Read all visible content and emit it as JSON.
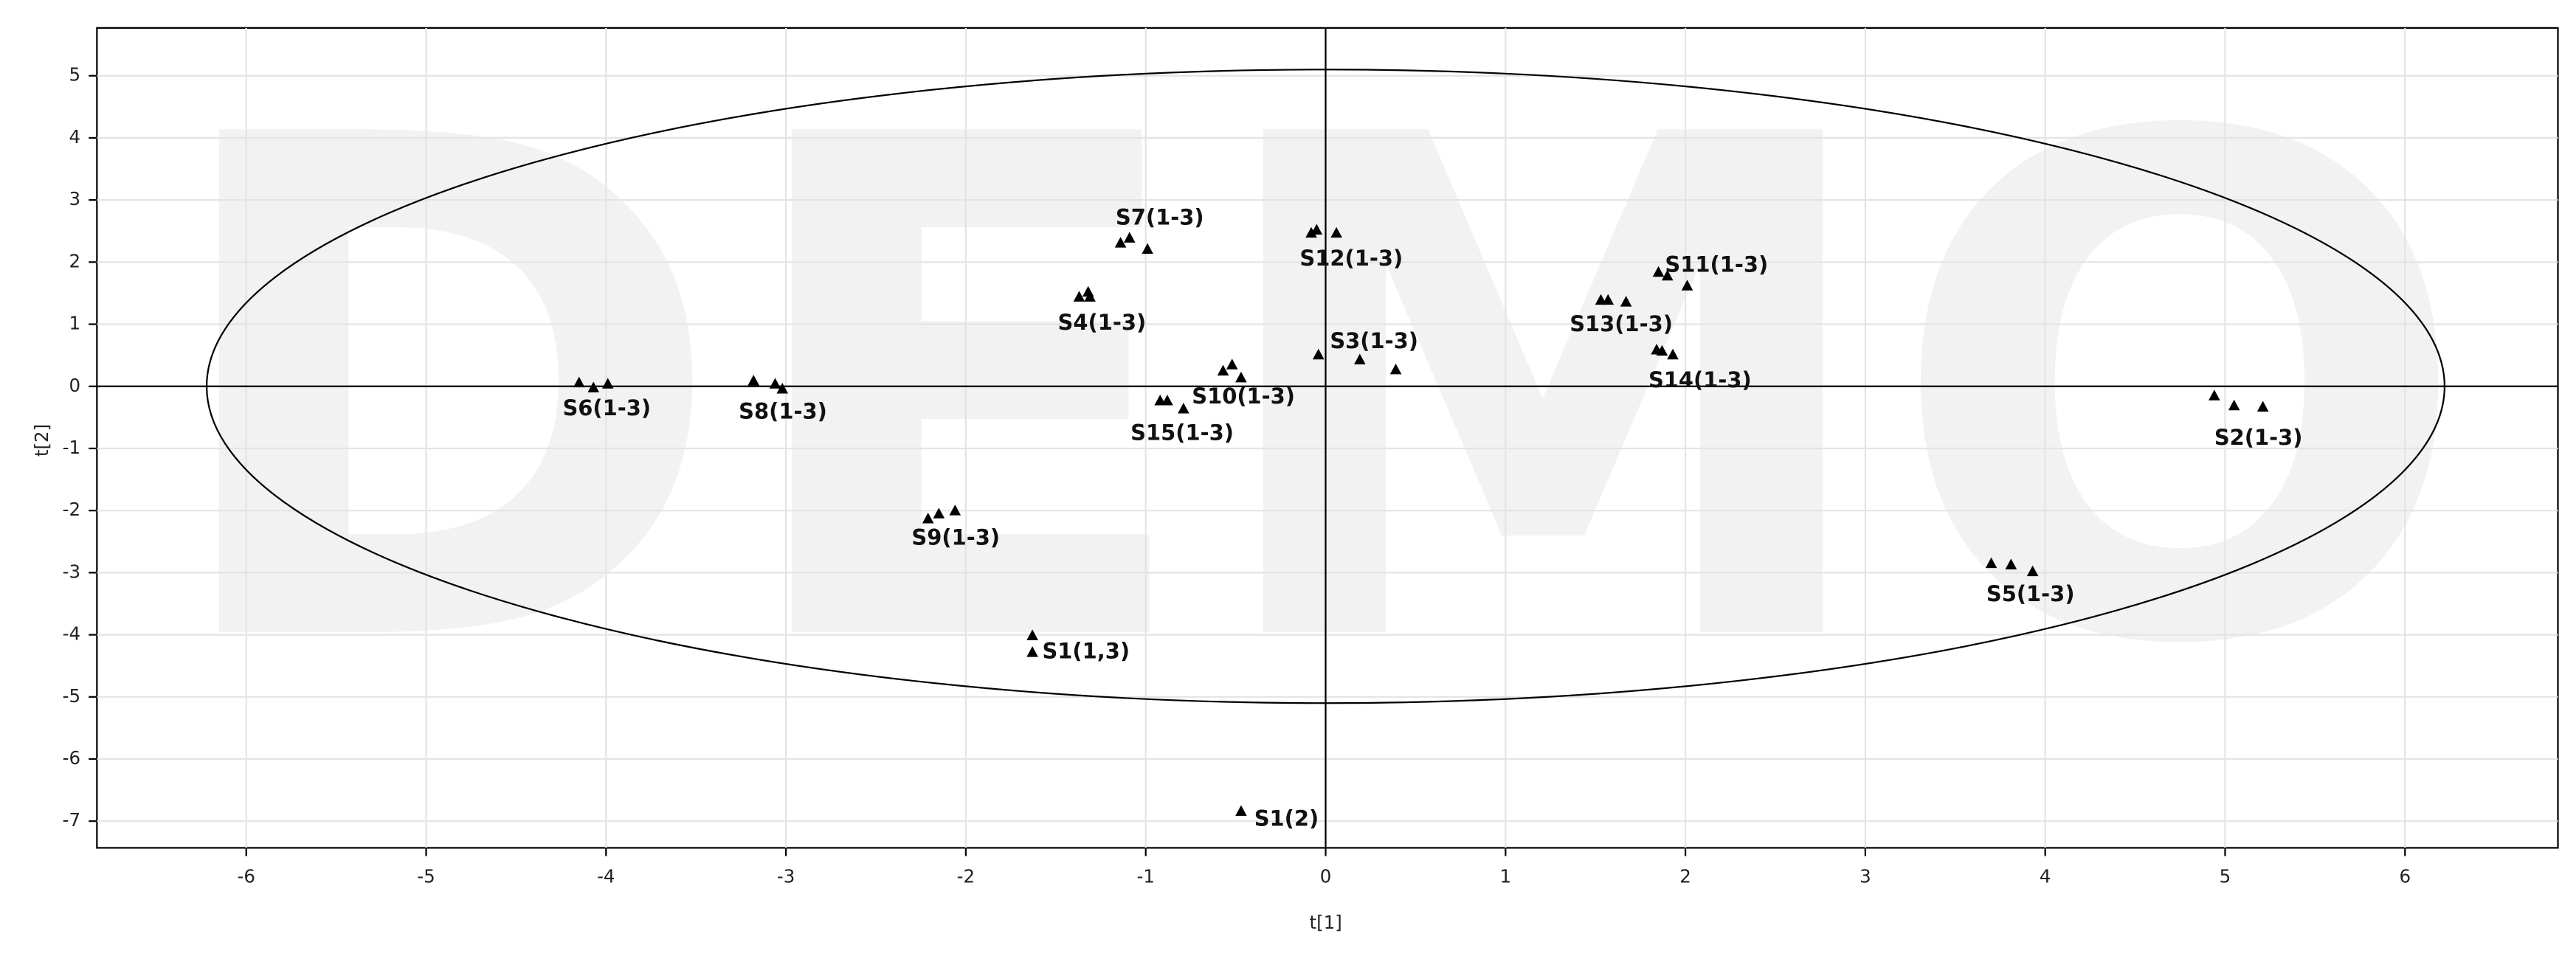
{
  "chart_data": {
    "type": "scatter",
    "x_label": "t[1]",
    "y_label": "t[2]",
    "watermark": "DEMO",
    "xlim": [
      -6.83,
      6.85
    ],
    "ylim": [
      -7.43,
      5.77
    ],
    "xticks": [
      -6,
      -5,
      -4,
      -3,
      -2,
      -1,
      0,
      1,
      2,
      3,
      4,
      5,
      6
    ],
    "yticks": [
      -7,
      -6,
      -5,
      -4,
      -3,
      -2,
      -1,
      0,
      1,
      2,
      3,
      4,
      5
    ],
    "grid": true,
    "marker": "triangle",
    "ellipse_radii": [
      6.22,
      5.1
    ],
    "series": [
      {
        "name": "S6(1-3)",
        "color": "#000000",
        "x": [
          -4.15,
          -4.07,
          -3.99
        ],
        "y": [
          0.05,
          -0.03,
          0.03
        ]
      },
      {
        "name": "S8(1-3)",
        "color": "#000000",
        "x": [
          -3.18,
          -3.06,
          -3.02
        ],
        "y": [
          0.08,
          0.03,
          -0.05
        ]
      },
      {
        "name": "S9(1-3)",
        "color": "#000000",
        "x": [
          -2.21,
          -2.15,
          -2.06
        ],
        "y": [
          -2.14,
          -2.06,
          -2.01
        ]
      },
      {
        "name": "S1(1,3)",
        "color": "#000000",
        "x": [
          -1.63,
          -1.63
        ],
        "y": [
          -4.02,
          -4.29
        ]
      },
      {
        "name": "S1(2)",
        "color": "#000000",
        "x": [
          -0.47
        ],
        "y": [
          -6.85
        ]
      },
      {
        "name": "S4(1-3)",
        "color": "#000000",
        "x": [
          -1.37,
          -1.32,
          -1.31
        ],
        "y": [
          1.43,
          1.51,
          1.43
        ]
      },
      {
        "name": "S7(1-3)",
        "color": "#000000",
        "x": [
          -1.14,
          -1.09,
          -0.99
        ],
        "y": [
          2.3,
          2.38,
          2.2
        ]
      },
      {
        "name": "S15(1-3)",
        "color": "#000000",
        "x": [
          -0.92,
          -0.88,
          -0.79
        ],
        "y": [
          -0.24,
          -0.24,
          -0.37
        ]
      },
      {
        "name": "S10(1-3)",
        "color": "#000000",
        "x": [
          -0.57,
          -0.52,
          -0.47
        ],
        "y": [
          0.24,
          0.34,
          0.13
        ]
      },
      {
        "name": "S12(1-3)",
        "color": "#000000",
        "x": [
          -0.08,
          -0.05,
          0.06
        ],
        "y": [
          2.46,
          2.51,
          2.46
        ]
      },
      {
        "name": "S3(1-3)",
        "color": "#000000",
        "x": [
          -0.04,
          0.19,
          0.39
        ],
        "y": [
          0.5,
          0.42,
          0.26
        ]
      },
      {
        "name": "S13(1-3)",
        "color": "#000000",
        "x": [
          1.53,
          1.57,
          1.67
        ],
        "y": [
          1.38,
          1.38,
          1.35
        ]
      },
      {
        "name": "S11(1-3)",
        "color": "#000000",
        "x": [
          1.85,
          1.9,
          2.01
        ],
        "y": [
          1.83,
          1.77,
          1.61
        ]
      },
      {
        "name": "S14(1-3)",
        "color": "#000000",
        "x": [
          1.84,
          1.87,
          1.93
        ],
        "y": [
          0.58,
          0.56,
          0.5
        ]
      },
      {
        "name": "S2(1-3)",
        "color": "#000000",
        "x": [
          4.94,
          5.05,
          5.21
        ],
        "y": [
          -0.16,
          -0.32,
          -0.34
        ]
      },
      {
        "name": "S5(1-3)",
        "color": "#000000",
        "x": [
          3.7,
          3.81,
          3.93
        ],
        "y": [
          -2.86,
          -2.88,
          -2.99
        ]
      }
    ]
  }
}
